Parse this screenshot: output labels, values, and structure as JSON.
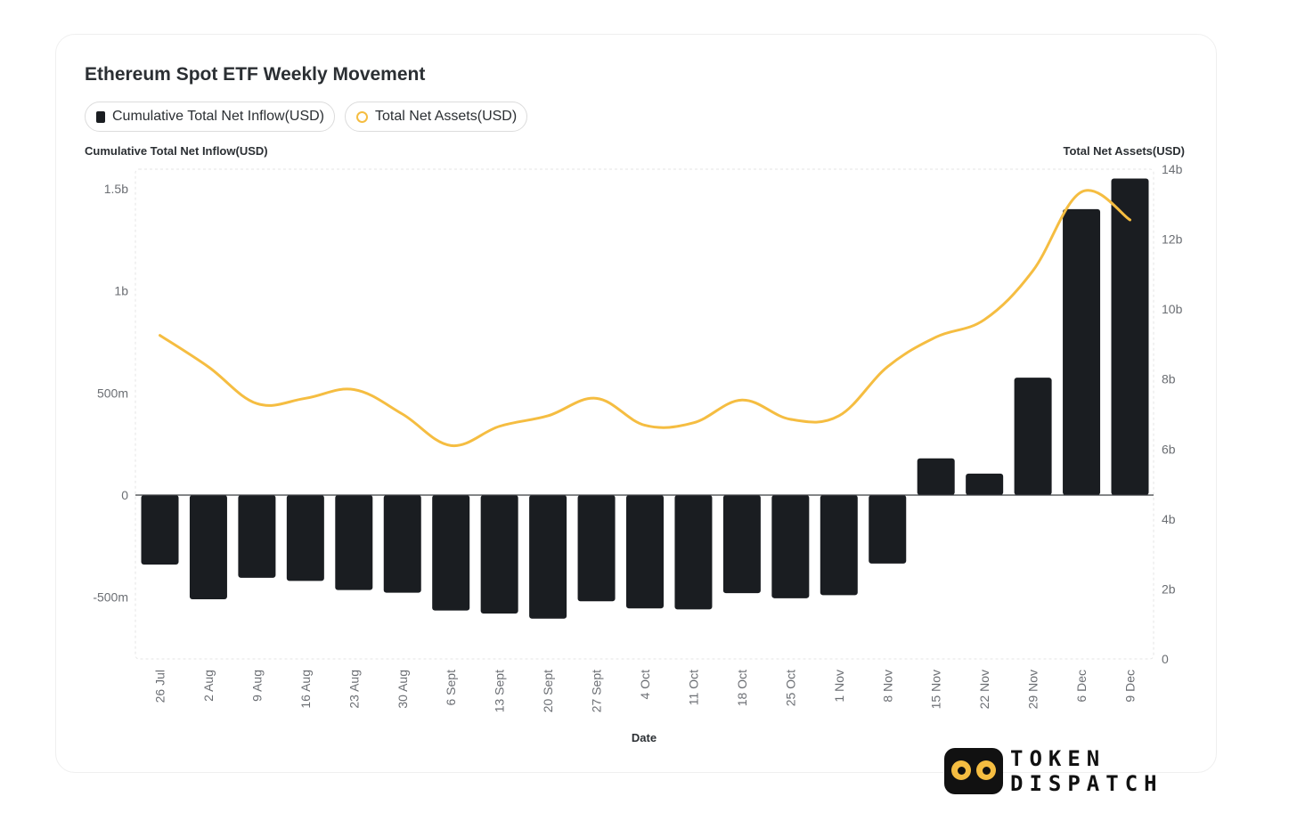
{
  "chart_data": {
    "type": "bar",
    "title": "Ethereum Spot ETF Weekly Movement",
    "legend": [
      {
        "label": "Cumulative Total Net Inflow(USD)",
        "marker": "bar",
        "color": "#1a1d21"
      },
      {
        "label": "Total Net Assets(USD)",
        "marker": "line",
        "color": "#f5bd41"
      }
    ],
    "legend_position": "top-left",
    "xlabel": "Date",
    "ylabel_left": "Cumulative Total Net Inflow(USD)",
    "ylabel_right": "Total Net Assets(USD)",
    "categories": [
      "26 Jul",
      "2 Aug",
      "9 Aug",
      "16 Aug",
      "23 Aug",
      "30 Aug",
      "6 Sept",
      "13 Sept",
      "20 Sept",
      "27 Sept",
      "4 Oct",
      "11 Oct",
      "18 Oct",
      "25 Oct",
      "1 Nov",
      "8 Nov",
      "15 Nov",
      "22 Nov",
      "29 Nov",
      "6 Dec",
      "9 Dec"
    ],
    "left_axis": {
      "ylim": [
        -800000000,
        1600000000
      ],
      "ticks": [
        -500000000,
        0,
        500000000,
        1000000000,
        1500000000
      ],
      "tick_labels": [
        "-500m",
        "0",
        "500m",
        "1b",
        "1.5b"
      ]
    },
    "right_axis": {
      "ylim": [
        0,
        14000000000
      ],
      "ticks": [
        0,
        2000000000,
        4000000000,
        6000000000,
        8000000000,
        10000000000,
        12000000000,
        14000000000
      ],
      "tick_labels": [
        "0",
        "2b",
        "4b",
        "6b",
        "8b",
        "10b",
        "12b",
        "14b"
      ]
    },
    "series": [
      {
        "name": "Cumulative Total Net Inflow(USD)",
        "type": "bar",
        "axis": "left",
        "values": [
          -340000000,
          -510000000,
          -405000000,
          -420000000,
          -465000000,
          -478000000,
          -565000000,
          -580000000,
          -605000000,
          -520000000,
          -555000000,
          -560000000,
          -480000000,
          -505000000,
          -490000000,
          -335000000,
          180000000,
          105000000,
          575000000,
          1400000000,
          1550000000
        ]
      },
      {
        "name": "Total Net Assets(USD)",
        "type": "line",
        "axis": "right",
        "values": [
          9250000000,
          8350000000,
          7300000000,
          7450000000,
          7700000000,
          7000000000,
          6100000000,
          6650000000,
          6950000000,
          7450000000,
          6680000000,
          6750000000,
          7400000000,
          6850000000,
          6950000000,
          8350000000,
          9200000000,
          9700000000,
          11100000000,
          13350000000,
          12550000000
        ]
      }
    ],
    "grid": false,
    "colors": {
      "bar": "#1a1d21",
      "line": "#f5bd41",
      "axis_text": "#6b6e73",
      "baseline": "#3a3d42"
    }
  },
  "branding": {
    "logo_lines": [
      "TOKEN",
      "DISPATCH"
    ],
    "logo_icon": "token-dispatch-face-icon"
  }
}
